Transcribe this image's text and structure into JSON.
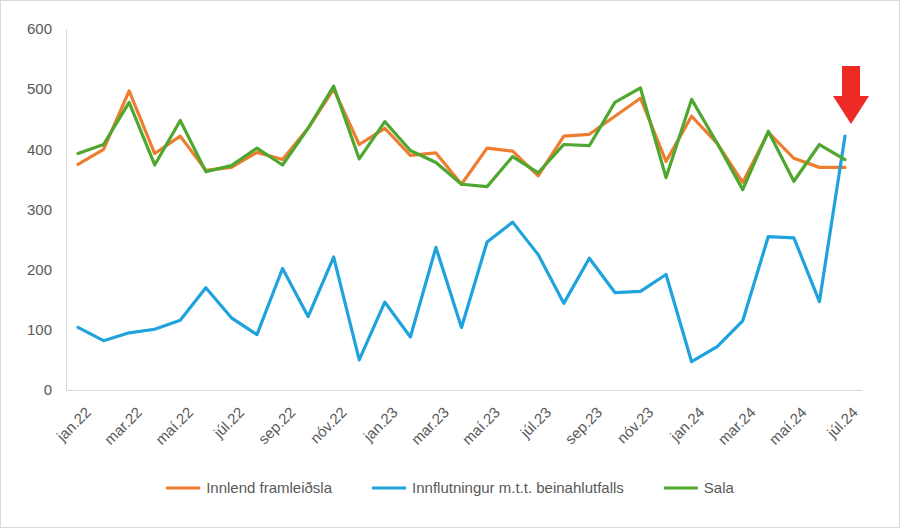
{
  "chart_data": {
    "type": "line",
    "categories": [
      "jan.22",
      null,
      "mar.22",
      null,
      "maí.22",
      null,
      "júl.22",
      null,
      "sep.22",
      null,
      "nóv.22",
      null,
      "jan.23",
      null,
      "mar.23",
      null,
      "maí.23",
      null,
      "júl.23",
      null,
      "sep.23",
      null,
      "nóv.23",
      null,
      "jan.24",
      null,
      "mar.24",
      null,
      "maí.24",
      null,
      "júl.24"
    ],
    "series": [
      {
        "name": "Innlend framleiðsla",
        "color": "#ed7d31",
        "values": [
          375,
          400,
          497,
          393,
          422,
          365,
          370,
          395,
          383,
          435,
          500,
          408,
          435,
          390,
          394,
          342,
          402,
          397,
          356,
          422,
          425,
          455,
          485,
          380,
          455,
          410,
          345,
          428,
          385,
          370,
          370
        ]
      },
      {
        "name": "Innflutningur m.t.t. beinahlutfalls",
        "color": "#1fa3dc",
        "values": [
          104,
          82,
          95,
          101,
          116,
          170,
          120,
          92,
          202,
          122,
          221,
          50,
          146,
          88,
          237,
          104,
          246,
          279,
          225,
          144,
          219,
          162,
          164,
          192,
          47,
          72,
          115,
          255,
          253,
          147,
          422
        ]
      },
      {
        "name": "Sala",
        "color": "#4ea72e",
        "values": [
          393,
          408,
          478,
          374,
          448,
          363,
          373,
          402,
          374,
          435,
          505,
          384,
          446,
          398,
          378,
          342,
          338,
          388,
          361,
          408,
          406,
          478,
          502,
          353,
          483,
          410,
          333,
          430,
          347,
          408,
          383
        ]
      }
    ],
    "ylim": [
      0,
      600
    ],
    "yticks": [
      0,
      100,
      200,
      300,
      400,
      500,
      600
    ],
    "grid": false,
    "legend": "bottom"
  }
}
